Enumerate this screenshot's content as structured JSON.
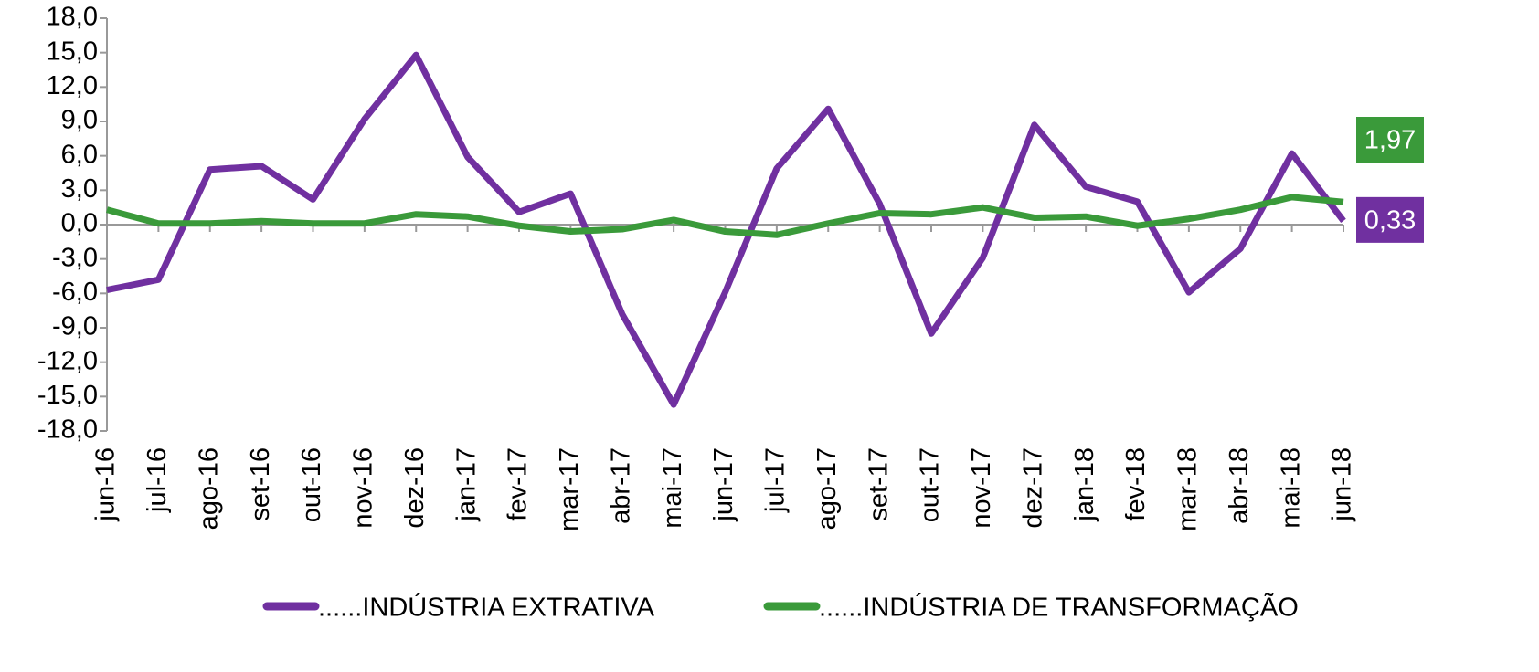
{
  "chart_data": {
    "type": "line",
    "categories": [
      "jun-16",
      "jul-16",
      "ago-16",
      "set-16",
      "out-16",
      "nov-16",
      "dez-16",
      "jan-17",
      "fev-17",
      "mar-17",
      "abr-17",
      "mai-17",
      "jun-17",
      "jul-17",
      "ago-17",
      "set-17",
      "out-17",
      "nov-17",
      "dez-17",
      "jan-18",
      "fev-18",
      "mar-18",
      "abr-18",
      "mai-18",
      "jun-18"
    ],
    "series": [
      {
        "name": "......INDÚSTRIA EXTRATIVA",
        "color": "#7030a0",
        "values": [
          -5.7,
          -4.8,
          4.8,
          5.1,
          2.2,
          9.2,
          14.8,
          5.9,
          1.1,
          2.7,
          -7.8,
          -15.7,
          -5.9,
          4.9,
          10.1,
          1.8,
          -9.5,
          -2.9,
          8.7,
          3.3,
          2.0,
          -5.9,
          -2.1,
          6.2,
          0.33
        ],
        "value_labels": [
          null,
          null,
          null,
          null,
          null,
          null,
          null,
          null,
          null,
          null,
          null,
          null,
          null,
          null,
          null,
          null,
          null,
          null,
          null,
          null,
          null,
          null,
          null,
          null,
          "0,33"
        ]
      },
      {
        "name": "......INDÚSTRIA DE TRANSFORMAÇÃO",
        "color": "#3a9a3a",
        "values": [
          1.3,
          0.1,
          0.1,
          0.3,
          0.1,
          0.1,
          0.9,
          0.7,
          -0.1,
          -0.6,
          -0.4,
          0.4,
          -0.6,
          -0.9,
          0.1,
          1.0,
          0.9,
          1.5,
          0.6,
          0.7,
          -0.1,
          0.5,
          1.3,
          2.4,
          1.97
        ],
        "value_labels": [
          null,
          null,
          null,
          null,
          null,
          null,
          null,
          null,
          null,
          null,
          null,
          null,
          null,
          null,
          null,
          null,
          null,
          null,
          null,
          null,
          null,
          null,
          null,
          null,
          "1,97"
        ]
      }
    ],
    "ylim": [
      -18,
      18
    ],
    "yticks": [
      {
        "value": -18,
        "label": "-18,0"
      },
      {
        "value": -15,
        "label": "-15,0"
      },
      {
        "value": -12,
        "label": "-12,0"
      },
      {
        "value": -9,
        "label": "-9,0"
      },
      {
        "value": -6,
        "label": "-6,0"
      },
      {
        "value": -3,
        "label": "-3,0"
      },
      {
        "value": 0,
        "label": "0,0"
      },
      {
        "value": 3,
        "label": "3,0"
      },
      {
        "value": 6,
        "label": "6,0"
      },
      {
        "value": 9,
        "label": "9,0"
      },
      {
        "value": 12,
        "label": "12,0"
      },
      {
        "value": 15,
        "label": "15,0"
      },
      {
        "value": 18,
        "label": "18,0"
      }
    ],
    "legend": "bottom"
  }
}
